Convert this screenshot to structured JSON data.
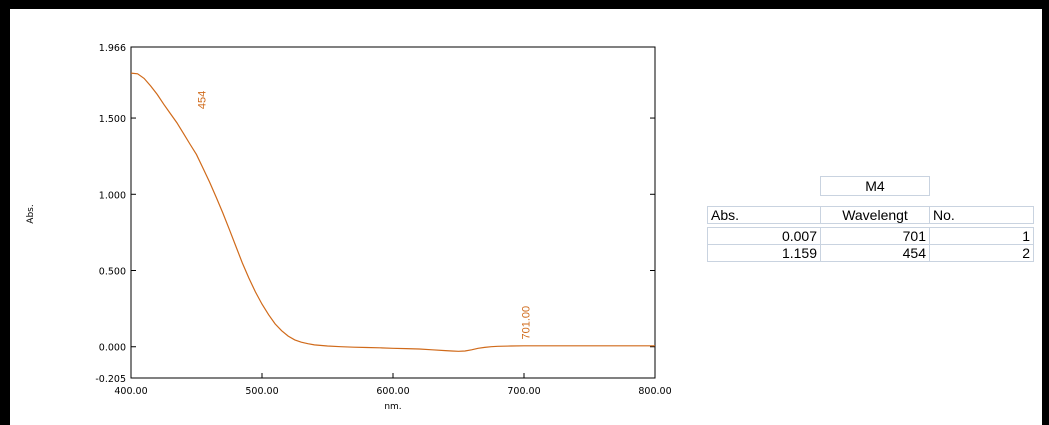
{
  "chart_data": {
    "type": "line",
    "xlabel": "nm.",
    "ylabel": "Abs.",
    "xlim": [
      400,
      800
    ],
    "ylim": [
      -0.205,
      1.966
    ],
    "x_ticks": [
      "400.00",
      "500.00",
      "600.00",
      "700.00",
      "800.00"
    ],
    "y_ticks": [
      "1.966",
      "1.500",
      "1.000",
      "0.500",
      "0.000",
      "-0.205"
    ],
    "series": [
      {
        "color": "#d06a1a",
        "x": [
          400,
          405,
          410,
          415,
          420,
          425,
          430,
          435,
          440,
          445,
          450,
          455,
          460,
          465,
          470,
          475,
          480,
          485,
          490,
          495,
          500,
          505,
          510,
          515,
          520,
          525,
          530,
          535,
          540,
          550,
          560,
          570,
          580,
          590,
          600,
          610,
          620,
          630,
          640,
          645,
          650,
          655,
          660,
          665,
          670,
          675,
          680,
          690,
          700,
          720,
          750,
          780,
          800
        ],
        "y": [
          1.795,
          1.79,
          1.76,
          1.71,
          1.655,
          1.59,
          1.53,
          1.47,
          1.4,
          1.33,
          1.26,
          1.17,
          1.08,
          0.98,
          0.88,
          0.77,
          0.66,
          0.55,
          0.45,
          0.36,
          0.28,
          0.21,
          0.15,
          0.105,
          0.07,
          0.045,
          0.03,
          0.02,
          0.012,
          0.005,
          0.0,
          -0.003,
          -0.005,
          -0.007,
          -0.01,
          -0.012,
          -0.015,
          -0.02,
          -0.025,
          -0.028,
          -0.03,
          -0.028,
          -0.02,
          -0.01,
          -0.004,
          0.0,
          0.003,
          0.005,
          0.006,
          0.006,
          0.006,
          0.006,
          0.006
        ]
      }
    ],
    "annotations": [
      {
        "label": "454",
        "x": 454,
        "y": 1.159
      },
      {
        "label": "701.00",
        "x": 701,
        "y": 0.007
      }
    ],
    "grid": false
  },
  "peak_table": {
    "title": "M4",
    "columns": [
      "Abs.",
      "Wavelengt",
      "No."
    ],
    "rows": [
      [
        "0.007",
        "701",
        "1"
      ],
      [
        "1.159",
        "454",
        "2"
      ]
    ]
  }
}
